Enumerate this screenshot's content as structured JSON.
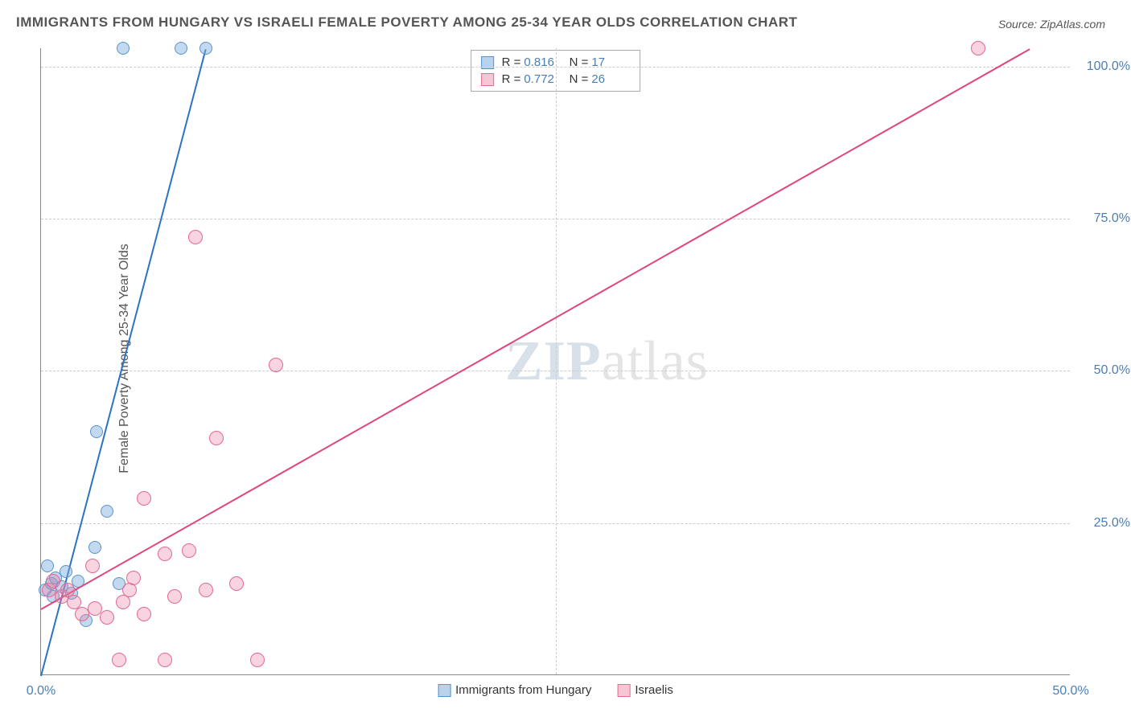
{
  "title": "IMMIGRANTS FROM HUNGARY VS ISRAELI FEMALE POVERTY AMONG 25-34 YEAR OLDS CORRELATION CHART",
  "source": "Source: ZipAtlas.com",
  "y_axis_label": "Female Poverty Among 25-34 Year Olds",
  "watermark_zip": "ZIP",
  "watermark_atlas": "atlas",
  "chart": {
    "type": "scatter",
    "background_color": "#ffffff",
    "grid_color": "#cccccc",
    "axis_color": "#888888",
    "tick_label_color": "#4a7fb5",
    "tick_fontsize": 16,
    "title_fontsize": 17,
    "title_color": "#555555",
    "xlim": [
      0,
      50
    ],
    "ylim": [
      0,
      103
    ],
    "x_ticks": [
      0,
      25,
      50
    ],
    "x_tick_labels": [
      "0.0%",
      "",
      "50.0%"
    ],
    "y_ticks": [
      25,
      50,
      75,
      100
    ],
    "y_tick_labels": [
      "25.0%",
      "50.0%",
      "75.0%",
      "100.0%"
    ],
    "legend_top": [
      {
        "swatch_fill": "#b9d3ec",
        "swatch_stroke": "#5a93cc",
        "r_label": "R =",
        "r_value": "0.816",
        "n_label": "N =",
        "n_value": "17"
      },
      {
        "swatch_fill": "#f6c6d4",
        "swatch_stroke": "#e46a90",
        "r_label": "R =",
        "r_value": "0.772",
        "n_label": "N =",
        "n_value": "26"
      }
    ],
    "legend_bottom": [
      {
        "swatch_fill": "#b9d3ec",
        "swatch_stroke": "#5a93cc",
        "label": "Immigrants from Hungary"
      },
      {
        "swatch_fill": "#f6c6d4",
        "swatch_stroke": "#e46a90",
        "label": "Israelis"
      }
    ],
    "series": [
      {
        "name": "Immigrants from Hungary",
        "point_fill": "rgba(120,170,220,0.45)",
        "point_stroke": "#5a93cc",
        "line_color": "#2e73c2",
        "marker_radius": 8,
        "line_start": [
          0.0,
          0.0
        ],
        "line_end": [
          8.0,
          103.0
        ],
        "points": [
          [
            0.2,
            14.0
          ],
          [
            0.3,
            18.0
          ],
          [
            0.5,
            15.0
          ],
          [
            0.7,
            16.0
          ],
          [
            1.0,
            14.5
          ],
          [
            1.5,
            13.5
          ],
          [
            2.2,
            9.0
          ],
          [
            2.6,
            21.0
          ],
          [
            2.7,
            40.0
          ],
          [
            3.2,
            27.0
          ],
          [
            3.8,
            15.0
          ],
          [
            4.0,
            103.0
          ],
          [
            6.8,
            103.0
          ],
          [
            8.0,
            103.0
          ],
          [
            0.6,
            13.0
          ],
          [
            1.2,
            17.0
          ],
          [
            1.8,
            15.5
          ]
        ]
      },
      {
        "name": "Israelis",
        "point_fill": "rgba(235,130,165,0.35)",
        "point_stroke": "#e46a90",
        "line_color": "#e0467b",
        "marker_radius": 9,
        "line_start": [
          0.0,
          11.0
        ],
        "line_end": [
          48.0,
          103.0
        ],
        "points": [
          [
            0.4,
            14.0
          ],
          [
            0.6,
            15.5
          ],
          [
            1.0,
            13.0
          ],
          [
            1.3,
            14.0
          ],
          [
            1.6,
            12.0
          ],
          [
            2.0,
            10.0
          ],
          [
            2.5,
            18.0
          ],
          [
            2.6,
            11.0
          ],
          [
            3.2,
            9.5
          ],
          [
            3.8,
            2.5
          ],
          [
            4.0,
            12.0
          ],
          [
            4.3,
            14.0
          ],
          [
            5.0,
            10.0
          ],
          [
            5.0,
            29.0
          ],
          [
            6.0,
            2.5
          ],
          [
            6.0,
            20.0
          ],
          [
            7.2,
            20.5
          ],
          [
            8.0,
            14.0
          ],
          [
            7.5,
            72.0
          ],
          [
            8.5,
            39.0
          ],
          [
            10.5,
            2.5
          ],
          [
            11.4,
            51.0
          ],
          [
            9.5,
            15.0
          ],
          [
            45.5,
            103.0
          ],
          [
            4.5,
            16.0
          ],
          [
            6.5,
            13.0
          ]
        ]
      }
    ]
  }
}
